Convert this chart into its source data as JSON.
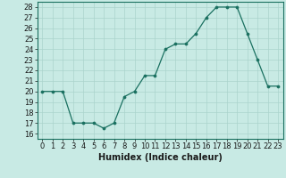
{
  "x": [
    0,
    1,
    2,
    3,
    4,
    5,
    6,
    7,
    8,
    9,
    10,
    11,
    12,
    13,
    14,
    15,
    16,
    17,
    18,
    19,
    20,
    21,
    22,
    23
  ],
  "y": [
    20,
    20,
    20,
    17,
    17,
    17,
    16.5,
    17,
    19.5,
    20,
    21.5,
    21.5,
    24,
    24.5,
    24.5,
    25.5,
    27,
    28,
    28,
    28,
    25.5,
    23,
    20.5,
    20.5
  ],
  "line_color": "#1a7060",
  "marker_color": "#1a7060",
  "bg_color": "#c8eae4",
  "grid_color": "#aad4cc",
  "xlabel": "Humidex (Indice chaleur)",
  "xlim": [
    -0.5,
    23.5
  ],
  "ylim": [
    15.5,
    28.5
  ],
  "yticks": [
    16,
    17,
    18,
    19,
    20,
    21,
    22,
    23,
    24,
    25,
    26,
    27,
    28
  ],
  "xticks": [
    0,
    1,
    2,
    3,
    4,
    5,
    6,
    7,
    8,
    9,
    10,
    11,
    12,
    13,
    14,
    15,
    16,
    17,
    18,
    19,
    20,
    21,
    22,
    23
  ],
  "tick_fontsize": 6,
  "xlabel_fontsize": 7
}
